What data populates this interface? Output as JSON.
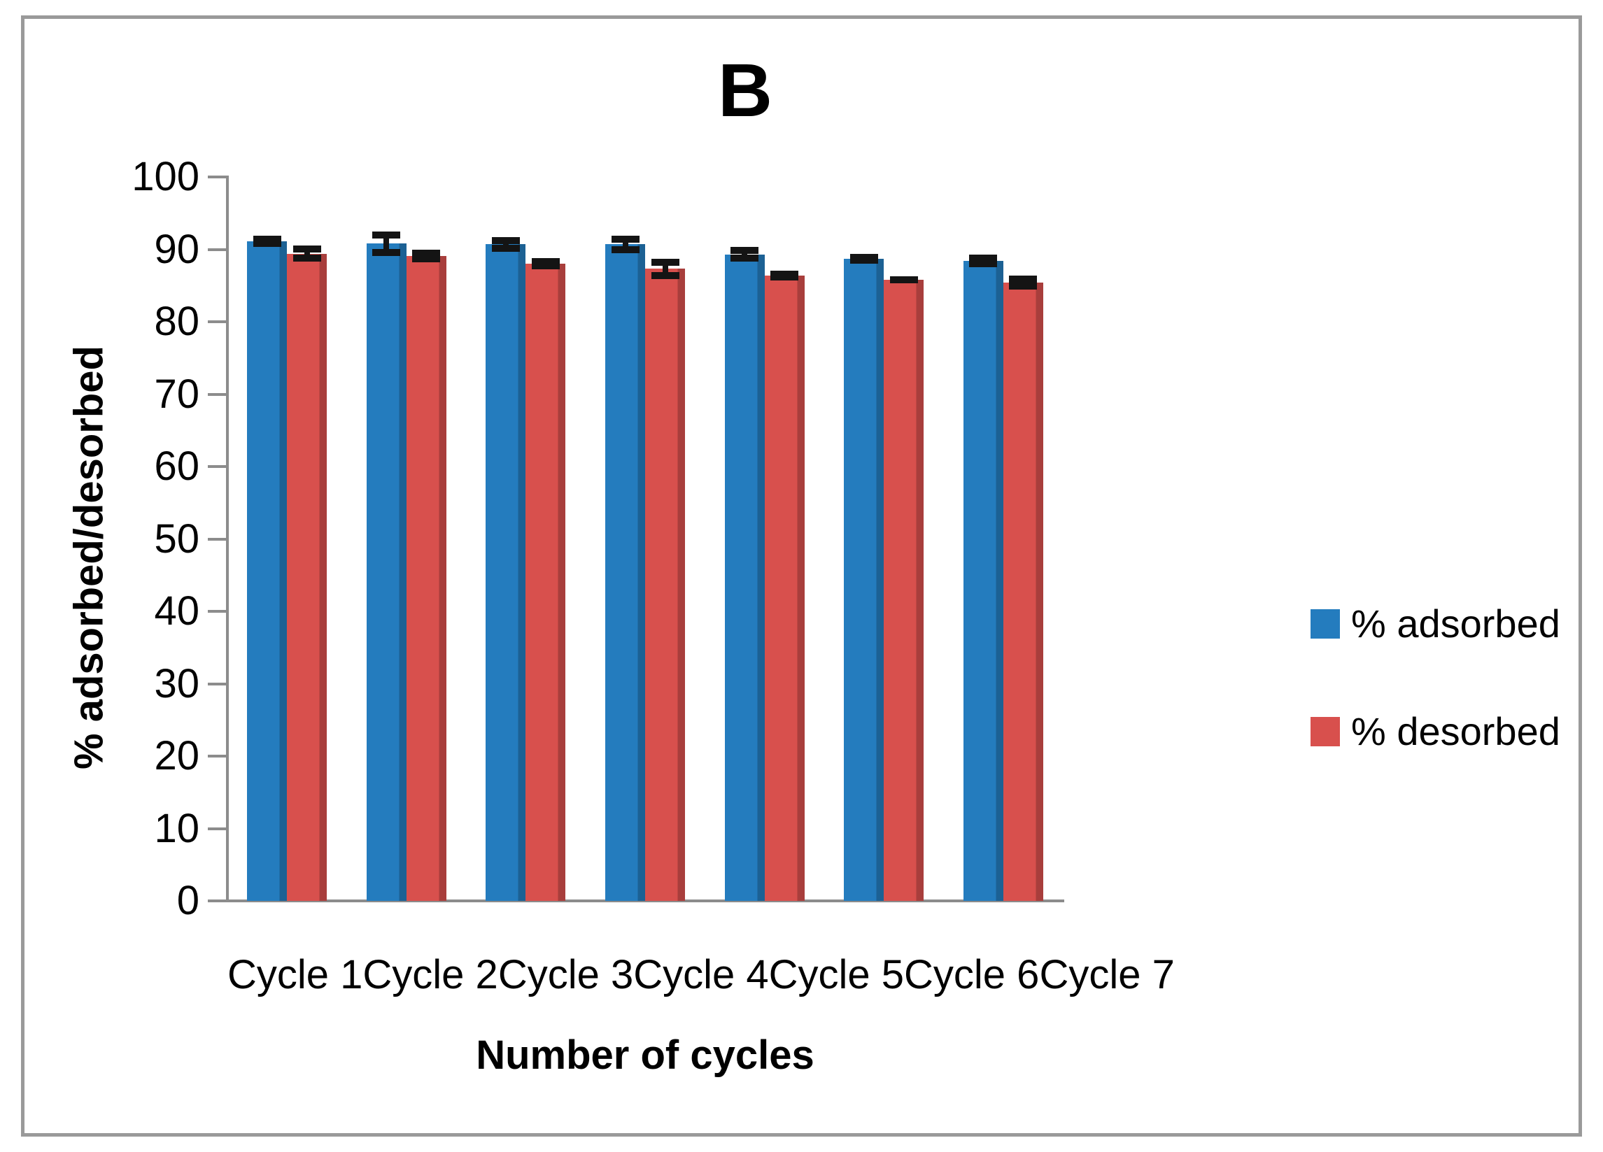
{
  "figure": {
    "panel_label": "B",
    "frame_border_color": "#9a9a9a",
    "background_color": "#ffffff"
  },
  "chart_data": {
    "type": "bar",
    "title": "B",
    "xlabel": "Number of cycles",
    "ylabel": "% adsorbed/desorbed",
    "ylim": [
      0,
      100
    ],
    "yticks": [
      0,
      10,
      20,
      30,
      40,
      50,
      60,
      70,
      80,
      90,
      100
    ],
    "grid": false,
    "legend_position": "right",
    "axis_color": "#8c8c8c",
    "error_bar_color": "#141414",
    "categories": [
      "Cycle 1",
      "Cycle 2",
      "Cycle 3",
      "Cycle 4",
      "Cycle 5",
      "Cycle 6",
      "Cycle 7"
    ],
    "series": [
      {
        "name": "% adsorbed",
        "color": "#247CBE",
        "values": [
          91.1,
          90.8,
          90.7,
          90.7,
          89.3,
          88.7,
          88.4
        ],
        "errors": [
          0.8,
          1.7,
          1.0,
          1.2,
          1.0,
          0.7,
          0.9
        ]
      },
      {
        "name": "% desorbed",
        "color": "#D8504D",
        "values": [
          89.4,
          89.1,
          88.0,
          87.3,
          86.4,
          85.8,
          85.4
        ],
        "errors": [
          1.1,
          0.9,
          0.8,
          1.4,
          0.7,
          0.5,
          1.0
        ]
      }
    ]
  }
}
